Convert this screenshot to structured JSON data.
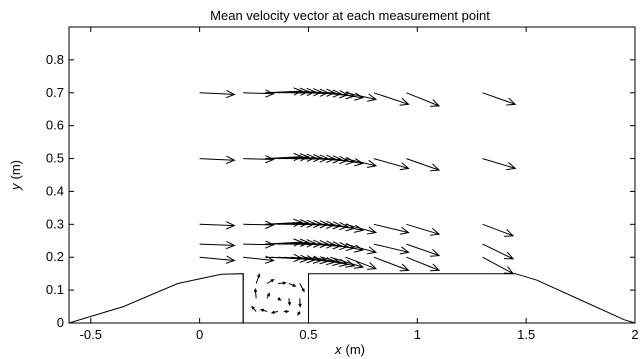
{
  "chart_data": {
    "type": "quiver",
    "title": "Mean velocity vector at each measurement point",
    "xlabel_var": "x",
    "xlabel_unit": "(m)",
    "ylabel_var": "y",
    "ylabel_unit": "(m)",
    "xlim": [
      -0.6,
      2.0
    ],
    "ylim": [
      0,
      0.9
    ],
    "xticks": [
      -0.5,
      0,
      0.5,
      1,
      1.5,
      2
    ],
    "xtick_labels": [
      "-0.5",
      "0",
      "0.5",
      "1",
      "1.5",
      "2"
    ],
    "yticks": [
      0,
      0.1,
      0.2,
      0.3,
      0.4,
      0.5,
      0.6,
      0.7,
      0.8
    ],
    "ytick_labels": [
      "0",
      "0.1",
      "0.2",
      "0.3",
      "0.4",
      "0.5",
      "0.6",
      "0.7",
      "0.8"
    ],
    "grid": false,
    "boundary": [
      [
        -0.6,
        0
      ],
      [
        -0.35,
        0.05
      ],
      [
        -0.1,
        0.12
      ],
      [
        0.1,
        0.148
      ],
      [
        0.2,
        0.15
      ],
      [
        0.2,
        0
      ],
      [
        0.5,
        0
      ],
      [
        0.5,
        0.15
      ],
      [
        1.45,
        0.15
      ],
      [
        1.55,
        0.13
      ],
      [
        1.75,
        0.07
      ],
      [
        1.95,
        0.01
      ],
      [
        2.0,
        0
      ]
    ],
    "boundary_post": [
      [
        0.2,
        0
      ],
      [
        0.2,
        0.15
      ]
    ],
    "vectors": {
      "rows": [
        {
          "y": 0.7,
          "x": [
            0,
            0.2,
            0.3,
            0.33,
            0.36,
            0.39,
            0.42,
            0.45,
            0.48,
            0.52,
            0.56,
            0.6,
            0.67,
            0.8,
            0.95,
            1.3
          ],
          "u": [
            0.16,
            0.14,
            0.17,
            0.17,
            0.17,
            0.17,
            0.17,
            0.17,
            0.17,
            0.16,
            0.15,
            0.15,
            0.14,
            0.16,
            0.15,
            0.15
          ],
          "v": [
            -0.005,
            -0.003,
            0.005,
            0.004,
            0.003,
            0.002,
            0.0,
            0.0,
            -0.003,
            -0.006,
            -0.01,
            -0.015,
            -0.02,
            -0.035,
            -0.04,
            -0.035
          ]
        },
        {
          "y": 0.5,
          "x": [
            0,
            0.2,
            0.3,
            0.33,
            0.36,
            0.39,
            0.42,
            0.45,
            0.48,
            0.52,
            0.56,
            0.6,
            0.67,
            0.8,
            0.95,
            1.3
          ],
          "u": [
            0.16,
            0.14,
            0.17,
            0.17,
            0.17,
            0.17,
            0.17,
            0.17,
            0.17,
            0.16,
            0.15,
            0.15,
            0.14,
            0.16,
            0.15,
            0.15
          ],
          "v": [
            -0.005,
            -0.003,
            0.006,
            0.005,
            0.003,
            0.002,
            0.0,
            -0.001,
            -0.003,
            -0.006,
            -0.01,
            -0.015,
            -0.022,
            -0.03,
            -0.035,
            -0.03
          ]
        },
        {
          "y": 0.3,
          "x": [
            0,
            0.2,
            0.3,
            0.33,
            0.36,
            0.39,
            0.42,
            0.45,
            0.48,
            0.52,
            0.56,
            0.6,
            0.67,
            0.8,
            0.95,
            1.3
          ],
          "u": [
            0.16,
            0.14,
            0.17,
            0.17,
            0.17,
            0.17,
            0.17,
            0.17,
            0.17,
            0.16,
            0.15,
            0.15,
            0.14,
            0.16,
            0.15,
            0.14
          ],
          "v": [
            -0.004,
            -0.002,
            0.006,
            0.004,
            0.002,
            0.001,
            0.0,
            -0.002,
            -0.004,
            -0.007,
            -0.012,
            -0.018,
            -0.025,
            -0.025,
            -0.03,
            -0.035
          ]
        },
        {
          "y": 0.24,
          "x": [
            0,
            0.2,
            0.3,
            0.33,
            0.36,
            0.39,
            0.42,
            0.45,
            0.48,
            0.52,
            0.56,
            0.6,
            0.67,
            0.8,
            0.95,
            1.3
          ],
          "u": [
            0.16,
            0.14,
            0.17,
            0.17,
            0.17,
            0.17,
            0.17,
            0.17,
            0.17,
            0.16,
            0.15,
            0.15,
            0.14,
            0.16,
            0.15,
            0.14
          ],
          "v": [
            -0.004,
            -0.002,
            0.006,
            0.005,
            0.003,
            0.001,
            0.0,
            -0.002,
            -0.005,
            -0.008,
            -0.012,
            -0.018,
            -0.025,
            -0.025,
            -0.035,
            -0.045
          ]
        },
        {
          "y": 0.2,
          "x": [
            0,
            0.2,
            0.3,
            0.33,
            0.36,
            0.39,
            0.42,
            0.45,
            0.48,
            0.52,
            0.56,
            0.6,
            0.67,
            0.8,
            0.95,
            1.3
          ],
          "u": [
            0.16,
            0.14,
            0.17,
            0.17,
            0.17,
            0.17,
            0.17,
            0.17,
            0.17,
            0.16,
            0.15,
            0.15,
            0.14,
            0.16,
            0.15,
            0.14
          ],
          "v": [
            -0.01,
            -0.01,
            -0.003,
            -0.006,
            -0.008,
            -0.01,
            -0.012,
            -0.015,
            -0.018,
            -0.022,
            -0.026,
            -0.03,
            -0.035,
            -0.04,
            -0.04,
            -0.05
          ]
        }
      ],
      "cavity": {
        "x": [
          0.26,
          0.31,
          0.36,
          0.41,
          0.46,
          0.26,
          0.31,
          0.36,
          0.41,
          0.46,
          0.26,
          0.31,
          0.36,
          0.41,
          0.46
        ],
        "y": [
          0.12,
          0.12,
          0.12,
          0.12,
          0.12,
          0.075,
          0.075,
          0.075,
          0.075,
          0.075,
          0.035,
          0.035,
          0.035,
          0.035,
          0.035
        ],
        "u": [
          0.015,
          0.03,
          0.035,
          0.03,
          0.02,
          -0.004,
          0.01,
          0.012,
          0.004,
          0.002,
          -0.02,
          -0.028,
          -0.028,
          -0.02,
          -0.008
        ],
        "v": [
          0.028,
          0.012,
          0.002,
          -0.008,
          -0.024,
          0.028,
          0.015,
          -0.005,
          -0.02,
          -0.025,
          0.015,
          0.006,
          -0.004,
          0.0,
          -0.01
        ]
      }
    }
  }
}
